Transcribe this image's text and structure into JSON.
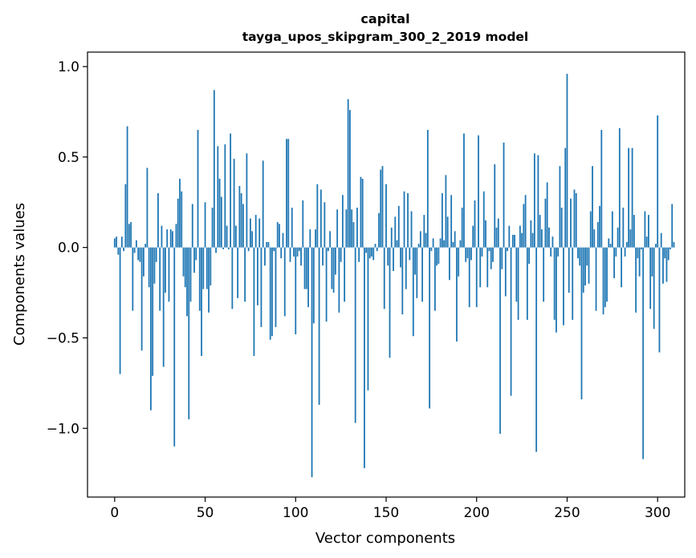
{
  "chart_data": {
    "type": "bar",
    "title": "capital",
    "subtitle": "tayga_upos_skipgram_300_2_2019 model",
    "xlabel": "Vector components",
    "ylabel": "Components values",
    "xlim": [
      -15,
      315
    ],
    "ylim": [
      -1.38,
      1.08
    ],
    "xticks": [
      0,
      50,
      100,
      150,
      200,
      250,
      300
    ],
    "xtick_labels": [
      "0",
      "50",
      "100",
      "150",
      "200",
      "250",
      "300"
    ],
    "yticks": [
      -1.0,
      -0.5,
      0.0,
      0.5,
      1.0
    ],
    "ytick_labels": [
      "−1.0",
      "−0.5",
      "0.0",
      "0.5",
      "1.0"
    ],
    "bar_color": "#1f77b4",
    "categories_start": 0,
    "values": [
      0.05,
      0.06,
      -0.04,
      -0.7,
      0.06,
      -0.02,
      0.35,
      0.67,
      0.13,
      0.14,
      -0.35,
      -0.03,
      0.04,
      -0.07,
      -0.08,
      -0.57,
      -0.16,
      0.02,
      0.44,
      -0.22,
      -0.9,
      -0.71,
      -0.2,
      -0.08,
      0.3,
      -0.35,
      0.12,
      -0.66,
      -0.25,
      0.1,
      -0.3,
      0.1,
      0.09,
      -1.1,
      0.13,
      0.27,
      0.38,
      0.31,
      -0.16,
      -0.22,
      -0.38,
      -0.95,
      -0.3,
      0.24,
      -0.14,
      -0.07,
      0.65,
      -0.35,
      -0.6,
      -0.23,
      0.25,
      -0.23,
      -0.36,
      -0.21,
      0.22,
      0.87,
      -0.03,
      0.56,
      0.38,
      0.28,
      -0.01,
      0.57,
      0.12,
      -0.01,
      0.63,
      -0.34,
      0.49,
      0.12,
      -0.28,
      0.34,
      0.3,
      0.24,
      -0.3,
      0.52,
      -0.02,
      0.16,
      0.09,
      -0.6,
      0.18,
      -0.32,
      0.16,
      -0.44,
      0.48,
      -0.1,
      0.03,
      0.03,
      -0.51,
      -0.49,
      -0.02,
      -0.44,
      0.14,
      0.13,
      -0.06,
      0.08,
      -0.38,
      0.6,
      0.6,
      -0.08,
      0.22,
      -0.05,
      -0.48,
      -0.05,
      -0.02,
      -0.1,
      0.26,
      -0.23,
      -0.23,
      -0.33,
      0.1,
      -1.27,
      -0.42,
      0.1,
      0.35,
      -0.87,
      0.32,
      -0.1,
      0.25,
      -0.41,
      -0.02,
      0.09,
      -0.23,
      -0.25,
      -0.15,
      0.21,
      -0.36,
      -0.08,
      0.29,
      -0.3,
      0.21,
      0.82,
      0.76,
      0.21,
      0.14,
      -0.97,
      0.22,
      -0.08,
      0.39,
      0.38,
      -1.22,
      -0.03,
      -0.79,
      -0.06,
      -0.05,
      -0.07,
      0.02,
      -0.02,
      0.19,
      0.43,
      0.45,
      -0.34,
      0.35,
      -0.1,
      -0.61,
      0.11,
      -0.13,
      0.17,
      0.04,
      0.23,
      -0.11,
      -0.37,
      0.31,
      -0.23,
      0.3,
      -0.07,
      0.2,
      -0.49,
      -0.15,
      -0.28,
      0.02,
      0.09,
      -0.3,
      0.18,
      0.08,
      0.65,
      -0.89,
      -0.02,
      0.05,
      -0.35,
      -0.1,
      -0.09,
      0.05,
      0.3,
      0.04,
      0.4,
      0.17,
      -0.18,
      0.29,
      0.03,
      0.09,
      -0.52,
      -0.16,
      0.04,
      0.22,
      0.63,
      -0.08,
      -0.06,
      -0.33,
      -0.07,
      0.12,
      0.26,
      -0.33,
      0.62,
      -0.22,
      -0.05,
      0.31,
      0.15,
      -0.22,
      -0.02,
      -0.12,
      -0.08,
      0.46,
      0.11,
      0.16,
      -1.03,
      -0.12,
      0.58,
      -0.27,
      -0.02,
      0.12,
      -0.82,
      0.07,
      0.07,
      -0.3,
      -0.4,
      0.12,
      0.08,
      0.24,
      0.29,
      -0.4,
      -0.09,
      0.15,
      0.08,
      0.52,
      -1.13,
      0.51,
      0.18,
      0.1,
      -0.3,
      0.27,
      0.36,
      0.11,
      -0.05,
      0.06,
      -0.4,
      -0.47,
      -0.05,
      0.45,
      0.22,
      -0.43,
      0.55,
      0.96,
      -0.25,
      0.27,
      -0.4,
      0.32,
      0.3,
      -0.06,
      -0.1,
      -0.84,
      -0.25,
      -0.21,
      -0.1,
      -0.2,
      0.2,
      0.45,
      0.1,
      -0.35,
      0.14,
      0.23,
      0.65,
      -0.37,
      -0.33,
      -0.3,
      0.05,
      0.02,
      0.2,
      -0.17,
      -0.05,
      0.11,
      0.66,
      -0.22,
      0.22,
      -0.05,
      0.03,
      0.55,
      0.1,
      0.55,
      0.18,
      -0.36,
      -0.06,
      -0.16,
      -0.01,
      -1.17,
      0.2,
      0.06,
      0.18,
      -0.34,
      -0.16,
      -0.45,
      0.02,
      0.73,
      -0.58,
      0.08,
      -0.2,
      -0.06,
      -0.19,
      -0.07,
      -0.01,
      0.24,
      0.03
    ]
  }
}
